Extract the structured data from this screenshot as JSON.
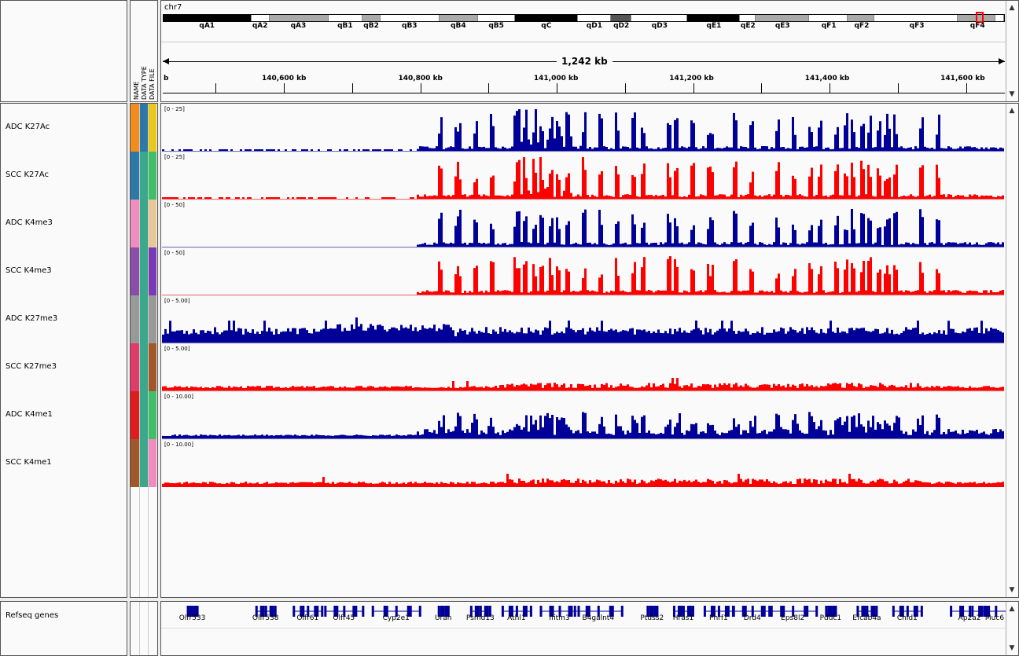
{
  "header": {
    "chromosome": "chr7",
    "span_label": "1,242 kb",
    "left_cut_label": "b",
    "attributes": [
      "NAME",
      "DATA TYPE",
      "DATA FILE"
    ],
    "bands": [
      {
        "name": "qA1",
        "start": 0,
        "end": 0.105,
        "stain": "#000000"
      },
      {
        "name": "qA2",
        "start": 0.105,
        "end": 0.126,
        "stain": "#ffffff"
      },
      {
        "name": "qA3",
        "start": 0.126,
        "end": 0.196,
        "stain": "#aaaaaa"
      },
      {
        "name": "qB1",
        "start": 0.196,
        "end": 0.237,
        "stain": "#ffffff"
      },
      {
        "name": "qB2",
        "start": 0.237,
        "end": 0.258,
        "stain": "#aaaaaa"
      },
      {
        "name": "qB3",
        "start": 0.258,
        "end": 0.328,
        "stain": "#ffffff"
      },
      {
        "name": "qB4",
        "start": 0.328,
        "end": 0.374,
        "stain": "#aaaaaa"
      },
      {
        "name": "qB5",
        "start": 0.374,
        "end": 0.418,
        "stain": "#ffffff"
      },
      {
        "name": "qC",
        "start": 0.418,
        "end": 0.493,
        "stain": "#000000"
      },
      {
        "name": "qD1",
        "start": 0.493,
        "end": 0.532,
        "stain": "#ffffff"
      },
      {
        "name": "qD2",
        "start": 0.532,
        "end": 0.557,
        "stain": "#555555"
      },
      {
        "name": "qD3",
        "start": 0.557,
        "end": 0.623,
        "stain": "#ffffff"
      },
      {
        "name": "qE1",
        "start": 0.623,
        "end": 0.686,
        "stain": "#000000"
      },
      {
        "name": "qE2",
        "start": 0.686,
        "end": 0.704,
        "stain": "#ffffff"
      },
      {
        "name": "qE3",
        "start": 0.704,
        "end": 0.768,
        "stain": "#aaaaaa"
      },
      {
        "name": "qF1",
        "start": 0.768,
        "end": 0.814,
        "stain": "#ffffff"
      },
      {
        "name": "qF2",
        "start": 0.814,
        "end": 0.846,
        "stain": "#aaaaaa"
      },
      {
        "name": "qF3",
        "start": 0.846,
        "end": 0.945,
        "stain": "#ffffff"
      },
      {
        "name": "qF4",
        "start": 0.945,
        "end": 0.99,
        "stain": "#aaaaaa"
      },
      {
        "name": "",
        "start": 0.99,
        "end": 1,
        "stain": "#ffffff"
      }
    ],
    "ruler_positions": [
      {
        "label": "140,600 kb",
        "frac": 0.144
      },
      {
        "label": "140,800 kb",
        "frac": 0.306
      },
      {
        "label": "141,000 kb",
        "frac": 0.467
      },
      {
        "label": "141,200 kb",
        "frac": 0.628
      },
      {
        "label": "141,400 kb",
        "frac": 0.789
      },
      {
        "label": "141,600 kb",
        "frac": 0.95
      }
    ]
  },
  "tracks": [
    {
      "name": "ADC K27Ac",
      "range": "[0 - 25]",
      "color": "#000099",
      "attr_colors": [
        "#f28c1c",
        "#2e78a8",
        "#e8c81c"
      ],
      "seed": 11,
      "kind": "peaks"
    },
    {
      "name": "SCC K27Ac",
      "range": "[0 - 25]",
      "color": "#ff0000",
      "attr_colors": [
        "#2e78a8",
        "#3aa88a",
        "#3fbf6a"
      ],
      "seed": 23,
      "kind": "peaks"
    },
    {
      "name": "ADC K4me3",
      "range": "[0 - 50]",
      "color": "#000099",
      "attr_colors": [
        "#f08cbe",
        "#3aa88a",
        "#e8c89a"
      ],
      "seed": 37,
      "kind": "sharp"
    },
    {
      "name": "SCC K4me3",
      "range": "[0 - 50]",
      "color": "#ff0000",
      "attr_colors": [
        "#8a4ea8",
        "#3aa88a",
        "#7a3ab8"
      ],
      "seed": 41,
      "kind": "sharp"
    },
    {
      "name": "ADC K27me3",
      "range": "[0 - 5.00]",
      "color": "#000099",
      "attr_colors": [
        "#999999",
        "#3aa88a",
        "#999999"
      ],
      "seed": 53,
      "kind": "broad"
    },
    {
      "name": "SCC K27me3",
      "range": "[0 - 5.00]",
      "color": "#ff0000",
      "attr_colors": [
        "#e03c6a",
        "#3aa88a",
        "#a0582a"
      ],
      "seed": 67,
      "kind": "low"
    },
    {
      "name": "ADC K4me1",
      "range": "[0 - 10.00]",
      "color": "#000099",
      "attr_colors": [
        "#e01c1c",
        "#3aa88a",
        "#3fbf6a"
      ],
      "seed": 71,
      "kind": "medium"
    },
    {
      "name": "SCC K4me1",
      "range": "[0 - 10.00]",
      "color": "#ff0000",
      "attr_colors": [
        "#a0582a",
        "#3aa88a",
        "#f08cbe"
      ],
      "seed": 83,
      "kind": "low"
    }
  ],
  "genes": {
    "track_name": "Refseq genes",
    "labels": [
      {
        "name": "Olfr533",
        "frac": 0.036
      },
      {
        "name": "Olfr538",
        "frac": 0.123
      },
      {
        "name": "Olfr61",
        "frac": 0.173
      },
      {
        "name": "Olfr45",
        "frac": 0.216
      },
      {
        "name": "Cyp2e1",
        "frac": 0.278
      },
      {
        "name": "Urah",
        "frac": 0.334
      },
      {
        "name": "Psmd13",
        "frac": 0.378
      },
      {
        "name": "Athl1",
        "frac": 0.421
      },
      {
        "name": "Ifitm3",
        "frac": 0.472
      },
      {
        "name": "B4galnt4",
        "frac": 0.518
      },
      {
        "name": "Ptdss2",
        "frac": 0.582
      },
      {
        "name": "Hras1",
        "frac": 0.619
      },
      {
        "name": "Phrf1",
        "frac": 0.661
      },
      {
        "name": "Drd4",
        "frac": 0.701
      },
      {
        "name": "Eps8l2",
        "frac": 0.749
      },
      {
        "name": "Pddc1",
        "frac": 0.794
      },
      {
        "name": "Efcab4a",
        "frac": 0.837
      },
      {
        "name": "Chid1",
        "frac": 0.885
      },
      {
        "name": "Ap2a2",
        "frac": 0.959
      },
      {
        "name": "Muc6",
        "frac": 0.99
      }
    ],
    "color": "#000099"
  }
}
